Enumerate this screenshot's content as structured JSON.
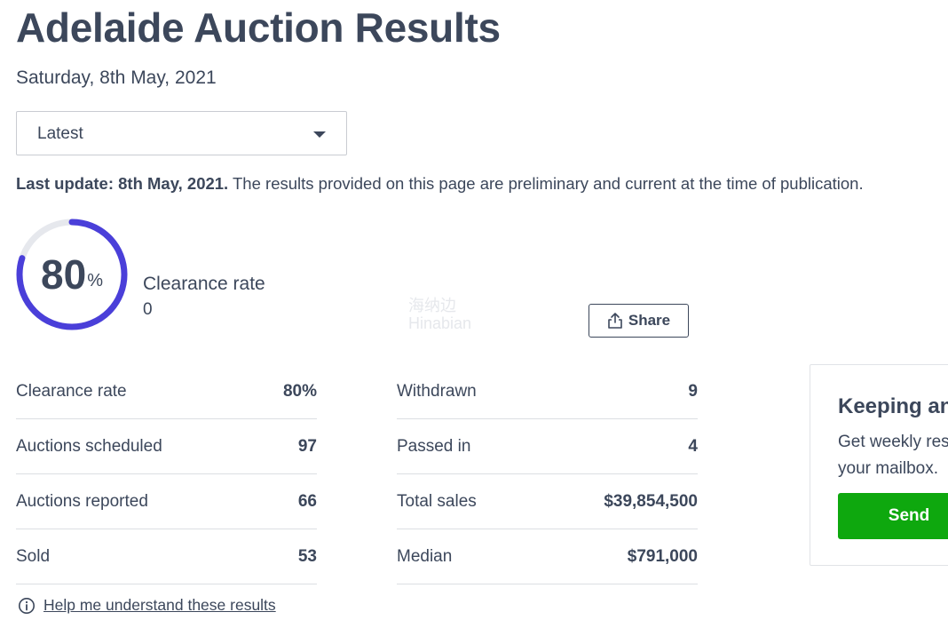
{
  "page": {
    "title": "Adelaide Auction Results",
    "date": "Saturday, 8th May, 2021"
  },
  "filter": {
    "selected": "Latest"
  },
  "update": {
    "label": "Last update: 8th May, 2021.",
    "text": " The results provided on this page are preliminary and current at the time of publication."
  },
  "gauge": {
    "value": "80",
    "unit": "%",
    "fraction": 0.8,
    "label": "Clearance rate",
    "sub": "0",
    "color_active": "#4a3fd9",
    "color_track": "#e6e8ed"
  },
  "share": {
    "label": "Share"
  },
  "stats_left": [
    {
      "label": "Clearance rate",
      "value": "80%"
    },
    {
      "label": "Auctions scheduled",
      "value": "97"
    },
    {
      "label": "Auctions reported",
      "value": "66"
    },
    {
      "label": "Sold",
      "value": "53"
    }
  ],
  "stats_right": [
    {
      "label": "Withdrawn",
      "value": "9"
    },
    {
      "label": "Passed in",
      "value": "4"
    },
    {
      "label": "Total sales",
      "value": "$39,854,500"
    },
    {
      "label": "Median",
      "value": "$791,000"
    }
  ],
  "help": {
    "label": "Help me understand these results"
  },
  "card": {
    "title": "Keeping an",
    "line1": "Get weekly res",
    "line2": "your mailbox.",
    "button": "Send"
  },
  "watermark": {
    "line1": "海纳边",
    "line2": "Hinabian"
  },
  "icons": {
    "share": "share-icon",
    "info": "info-icon",
    "caret": "chevron-down-icon"
  }
}
